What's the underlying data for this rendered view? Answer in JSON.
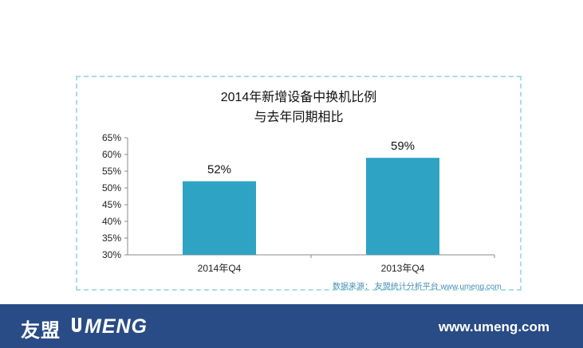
{
  "chart_data": {
    "type": "bar",
    "title": "2014年新增设备中换机比例",
    "subtitle": "与去年同期相比",
    "categories": [
      "2014年Q4",
      "2013年Q4"
    ],
    "values": [
      52,
      59
    ],
    "value_labels": [
      "52%",
      "59%"
    ],
    "ylim": [
      30,
      65
    ],
    "yticks": [
      "30%",
      "35%",
      "40%",
      "45%",
      "50%",
      "55%",
      "60%",
      "65%"
    ],
    "ytick_values": [
      30,
      35,
      40,
      45,
      50,
      55,
      60,
      65
    ],
    "bar_color": "#2ea3c3",
    "grid": false
  },
  "source_note": "数据来源： 友盟统计分析平台 www.umeng.com",
  "footer": {
    "logo_cn": "友盟",
    "logo_en": "MENG",
    "site": "www.umeng.com",
    "background": "#294c86"
  }
}
